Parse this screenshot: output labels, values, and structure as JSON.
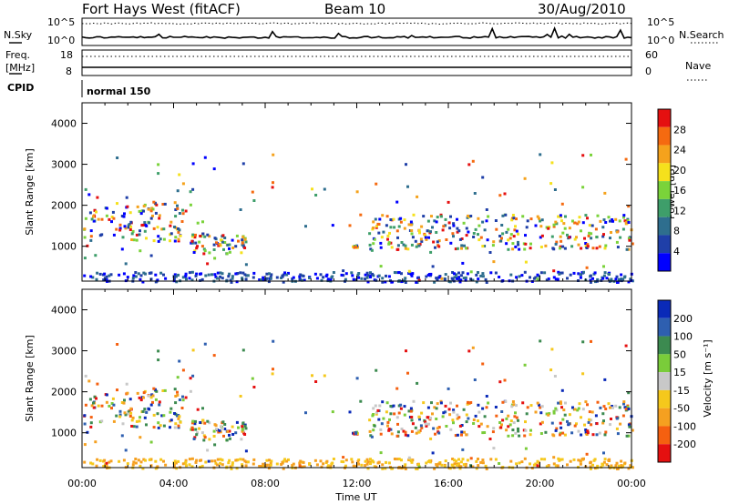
{
  "header": {
    "radar": "Fort Hays West (fitACF)",
    "beam": "Beam 10",
    "date": "30/Aug/2010"
  },
  "strip": {
    "nsky_label": "N.Sky",
    "nsky_top": "10^5",
    "nsky_bottom": "10^0",
    "nsearch_label": "N.Search",
    "nsearch_top": "10^5",
    "nsearch_bottom": "10^0",
    "freq_label": "Freq.",
    "freq_unit": "[MHz]",
    "freq_top": "18",
    "freq_bottom": "8",
    "nave_label": "Nave",
    "nave_top": "60",
    "nave_bottom": "0",
    "cpid_label": "CPID",
    "cpid_value": "normal 150"
  },
  "colors": {
    "power_scale": [
      "#0000ff",
      "#1f3fa8",
      "#2e6e8e",
      "#3e9e6a",
      "#7ad33a",
      "#f5e11c",
      "#f5a21c",
      "#f56a10",
      "#e51010"
    ],
    "velocity_scale": [
      "#0a2ab8",
      "#2e5fb0",
      "#3c8a50",
      "#7acc3a",
      "#c8c8c8",
      "#f5c81c",
      "#f5a020",
      "#f56010",
      "#e51010"
    ]
  },
  "chart_data": [
    {
      "type": "heatmap",
      "name": "power",
      "title": "",
      "xlabel": "",
      "ylabel": "Slant Range [km]",
      "xlim": [
        "00:00",
        "24:00"
      ],
      "ylim": [
        150,
        4500
      ],
      "y_ticks": [
        1000,
        2000,
        3000,
        4000
      ],
      "colorbar": {
        "label": "Power [dB]",
        "ticks": [
          4,
          8,
          12,
          16,
          20,
          24,
          28
        ]
      },
      "regions": [
        {
          "t0": 0.0,
          "t1": 4.5,
          "r0": 1150,
          "r1": 2100,
          "level": "mixed"
        },
        {
          "t0": 4.7,
          "t1": 7.2,
          "r0": 850,
          "r1": 1350,
          "level": "mixed"
        },
        {
          "t0": 11.7,
          "t1": 12.0,
          "r0": 1000,
          "r1": 1050,
          "level": "low"
        },
        {
          "t0": 12.5,
          "t1": 24.0,
          "r0": 950,
          "r1": 1800,
          "level": "mixed"
        },
        {
          "t0": 0.0,
          "t1": 24.0,
          "r0": 150,
          "r1": 400,
          "level": "low"
        }
      ]
    },
    {
      "type": "heatmap",
      "name": "velocity",
      "title": "",
      "xlabel": "Time UT",
      "ylabel": "Slant Range [km]",
      "xlim": [
        "00:00",
        "24:00"
      ],
      "ylim": [
        150,
        4500
      ],
      "x_ticks": [
        "00:00",
        "04:00",
        "08:00",
        "12:00",
        "16:00",
        "20:00",
        "00:00"
      ],
      "y_ticks": [
        1000,
        2000,
        3000,
        4000
      ],
      "colorbar": {
        "label": "Velocity [m s⁻¹]",
        "ticks": [
          200,
          100,
          50,
          15,
          -15,
          -50,
          -100,
          -200
        ]
      }
    }
  ]
}
